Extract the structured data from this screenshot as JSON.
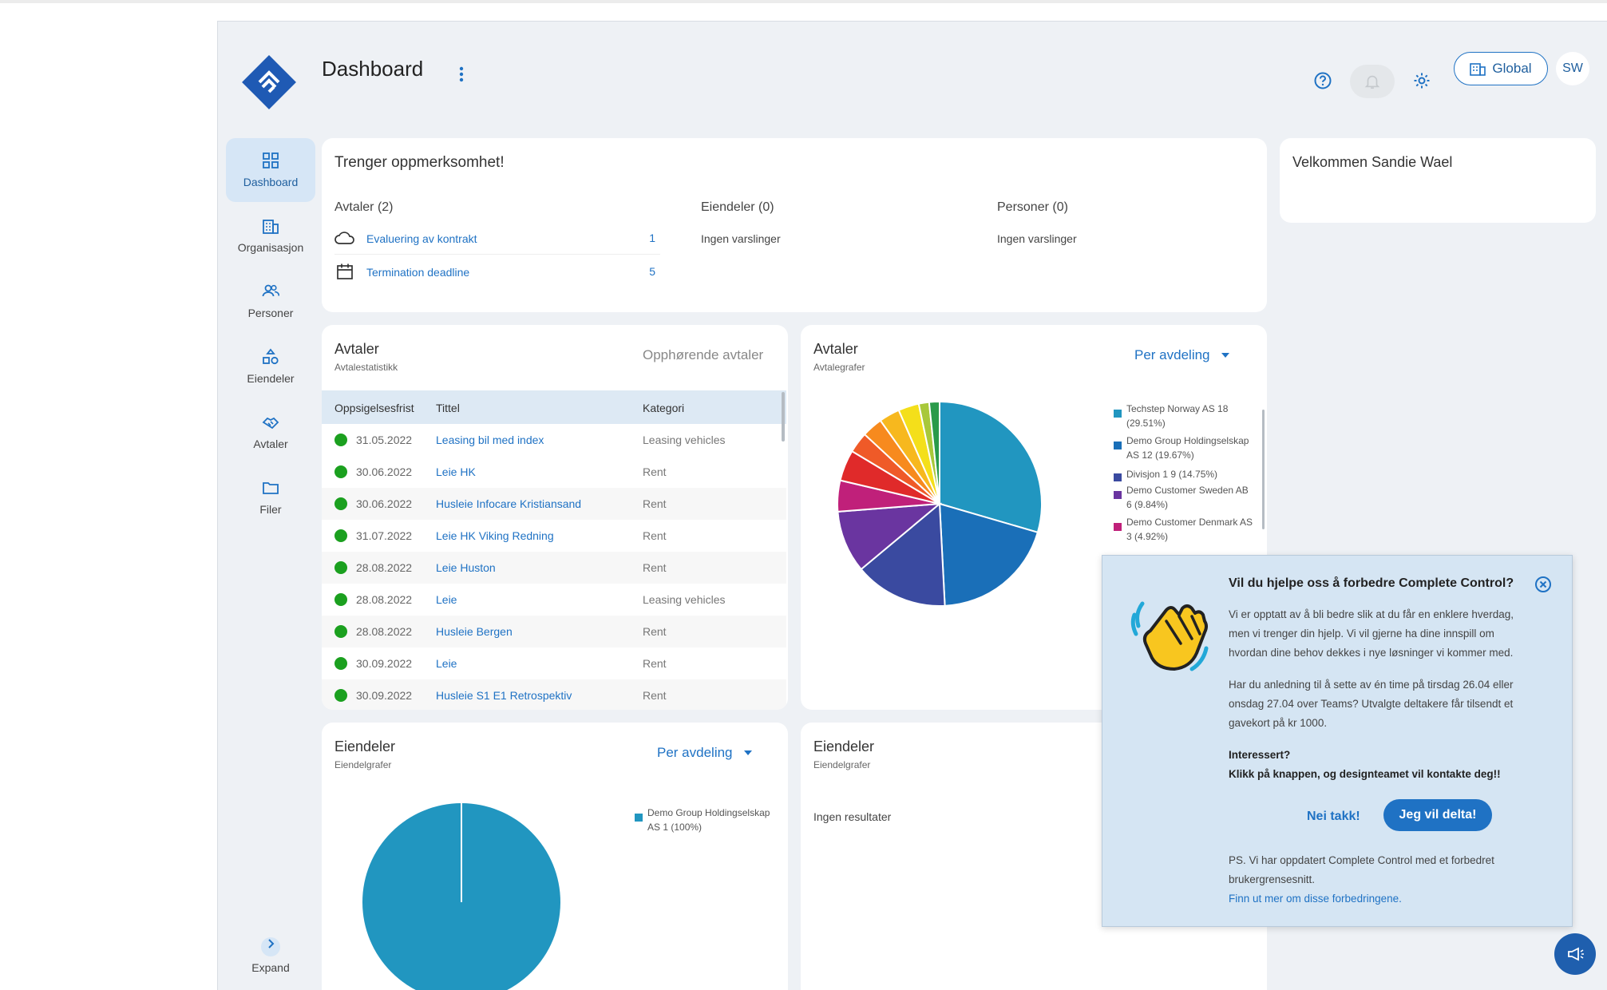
{
  "header": {
    "title": "Dashboard",
    "global_label": "Global",
    "avatar_initials": "SW"
  },
  "nav": {
    "items": [
      {
        "label": "Dashboard",
        "icon": "dashboard-icon"
      },
      {
        "label": "Organisasjon",
        "icon": "building-icon"
      },
      {
        "label": "Personer",
        "icon": "people-icon"
      },
      {
        "label": "Eiendeler",
        "icon": "assets-icon"
      },
      {
        "label": "Avtaler",
        "icon": "handshake-icon"
      },
      {
        "label": "Filer",
        "icon": "folder-icon"
      }
    ],
    "expand_label": "Expand"
  },
  "attention": {
    "title": "Trenger oppmerksomhet!",
    "avtaler_heading": "Avtaler (2)",
    "avtaler_items": [
      {
        "label": "Evaluering av kontrakt",
        "count": "1",
        "icon": "cloud-icon"
      },
      {
        "label": "Termination deadline",
        "count": "5",
        "icon": "calendar-icon"
      }
    ],
    "eiendeler_heading": "Eiendeler (0)",
    "eiendeler_text": "Ingen varslinger",
    "personer_heading": "Personer (0)",
    "personer_text": "Ingen varslinger"
  },
  "welcome": {
    "text": "Velkommen Sandie Wael"
  },
  "avtaler_table": {
    "title": "Avtaler",
    "subtitle": "Avtalestatistikk",
    "tab_label": "Opphørende avtaler",
    "columns": [
      "Oppsigelsesfrist",
      "Tittel",
      "Kategori"
    ],
    "rows": [
      {
        "date": "31.05.2022",
        "title": "Leasing bil med index",
        "category": "Leasing vehicles"
      },
      {
        "date": "30.06.2022",
        "title": "Leie HK",
        "category": "Rent"
      },
      {
        "date": "30.06.2022",
        "title": "Husleie Infocare Kristiansand",
        "category": "Rent"
      },
      {
        "date": "31.07.2022",
        "title": "Leie HK Viking Redning",
        "category": "Rent"
      },
      {
        "date": "28.08.2022",
        "title": "Leie Huston",
        "category": "Rent"
      },
      {
        "date": "28.08.2022",
        "title": "Leie",
        "category": "Leasing vehicles"
      },
      {
        "date": "28.08.2022",
        "title": "Husleie Bergen",
        "category": "Rent"
      },
      {
        "date": "30.09.2022",
        "title": "Leie",
        "category": "Rent"
      },
      {
        "date": "30.09.2022",
        "title": "Husleie S1 E1 Retrospektiv",
        "category": "Rent"
      }
    ]
  },
  "avtaler_chart": {
    "title": "Avtaler",
    "subtitle": "Avtalegrafer",
    "dropdown": "Per avdeling",
    "legend": [
      {
        "line1": "Techstep Norway AS 18",
        "line2": "(29.51%)",
        "color": "#2196c0"
      },
      {
        "line1": "Demo Group Holdingselskap",
        "line2": "AS 12 (19.67%)",
        "color": "#1a6fb8"
      },
      {
        "line1": "Divisjon 1 9 (14.75%)",
        "line2": "",
        "color": "#3a4aa0"
      },
      {
        "line1": "Demo Customer Sweden AB",
        "line2": "6 (9.84%)",
        "color": "#6a35a0"
      },
      {
        "line1": "Demo Customer Denmark AS",
        "line2": "3 (4.92%)",
        "color": "#c0207a"
      }
    ]
  },
  "eiendeler_chart": {
    "title": "Eiendeler",
    "subtitle": "Eiendelgrafer",
    "dropdown": "Per avdeling",
    "legend": [
      {
        "line1": "Demo Group Holdingselskap",
        "line2": "AS 1 (100%)",
        "color": "#2196c0"
      }
    ]
  },
  "eiendeler_card2": {
    "title": "Eiendeler",
    "subtitle": "Eiendelgrafer",
    "empty": "Ingen resultater"
  },
  "popup": {
    "title": "Vil du hjelpe oss å forbedre Complete Control?",
    "p1_lines": [
      "Vi er opptatt av å bli bedre slik at du får en enklere hverdag,",
      "men vi trenger din hjelp. Vi vil gjerne ha dine innspill om",
      "hvordan dine behov dekkes i nye løsninger vi kommer med."
    ],
    "p2_lines": [
      "Har du anledning til å sette av én time på tirsdag 26.04 eller",
      "onsdag 27.04 over Teams? Utvalgte deltakere får tilsendt et",
      "gavekort på kr 1000."
    ],
    "p3_line1": "Interessert?",
    "p3_line2": "Klikk på knappen, og designteamet vil kontakte deg!!",
    "decline": "Nei takk!",
    "accept": "Jeg vil delta!",
    "ps_lines": [
      "PS. Vi har oppdatert Complete Control med et forbedret",
      "brukergrensesnitt."
    ],
    "ps_link": "Finn ut mer om disse forbedringene."
  },
  "chart_data": [
    {
      "type": "pie",
      "title": "Avtaler",
      "slices": [
        {
          "name": "Techstep Norway AS",
          "value": 18,
          "color": "#2196c0"
        },
        {
          "name": "Demo Group Holdingselskap AS",
          "value": 12,
          "color": "#1a6fb8"
        },
        {
          "name": "Divisjon 1",
          "value": 9,
          "color": "#3a4aa0"
        },
        {
          "name": "Demo Customer Sweden AB",
          "value": 6,
          "color": "#6a35a0"
        },
        {
          "name": "Demo Customer Denmark AS",
          "value": 3,
          "color": "#c0207a"
        },
        {
          "name": "",
          "value": 3,
          "color": "#e02a2a"
        },
        {
          "name": "",
          "value": 2,
          "color": "#ef5a28"
        },
        {
          "name": "",
          "value": 2,
          "color": "#f78a1e"
        },
        {
          "name": "",
          "value": 2,
          "color": "#f7b81e"
        },
        {
          "name": "",
          "value": 2,
          "color": "#f4df1a"
        },
        {
          "name": "",
          "value": 1,
          "color": "#a8c83a"
        },
        {
          "name": "",
          "value": 1,
          "color": "#2a9a4a"
        }
      ]
    },
    {
      "type": "pie",
      "title": "Eiendeler",
      "slices": [
        {
          "name": "Demo Group Holdingselskap AS",
          "value": 1,
          "color": "#2196c0"
        }
      ]
    }
  ]
}
